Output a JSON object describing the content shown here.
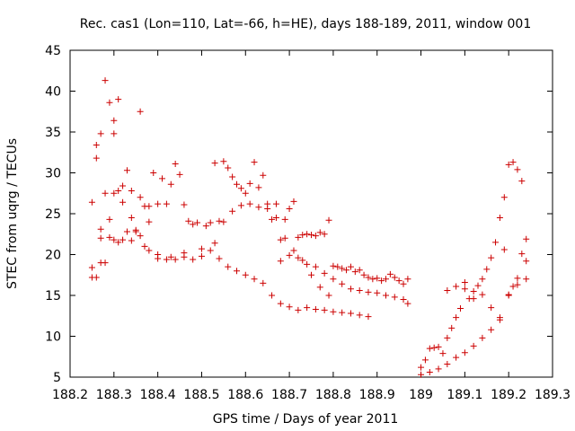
{
  "chart_data": {
    "type": "scatter",
    "title": "Rec. cas1 (Lon=110, Lat=-66, h=HE), days 188-189, 2011, window 001",
    "xlabel": "GPS time / Days of year 2011",
    "ylabel": "STEC from uqrg / TECUs",
    "xlim": [
      188.2,
      189.3
    ],
    "ylim": [
      5,
      45
    ],
    "xticks": [
      188.2,
      188.3,
      188.4,
      188.5,
      188.6,
      188.7,
      188.8,
      188.9,
      189,
      189.1,
      189.2,
      189.3
    ],
    "xtick_labels": [
      "188.2",
      "188.3",
      "188.4",
      "188.5",
      "188.6",
      "188.7",
      "188.8",
      "188.9",
      "189",
      "189.1",
      "189.2",
      "189.3"
    ],
    "yticks": [
      5,
      10,
      15,
      20,
      25,
      30,
      35,
      40,
      45
    ],
    "ytick_labels": [
      "5",
      "10",
      "15",
      "20",
      "25",
      "30",
      "35",
      "40",
      "45"
    ],
    "grid": false,
    "marker": "+",
    "color": "#cc0000",
    "series": [
      {
        "name": "STEC",
        "x": [
          188.25,
          188.25,
          188.25,
          188.26,
          188.26,
          188.26,
          188.27,
          188.27,
          188.27,
          188.28,
          188.28,
          188.28,
          188.29,
          188.29,
          188.3,
          188.3,
          188.3,
          188.31,
          188.31,
          188.32,
          188.32,
          188.33,
          188.34,
          188.34,
          188.35,
          188.36,
          188.36,
          188.37,
          188.38,
          188.38,
          188.39,
          188.4,
          188.41,
          188.42,
          188.43,
          188.44,
          188.45,
          188.46,
          188.47,
          188.48,
          188.49,
          188.5,
          188.51,
          188.52,
          188.53,
          188.54,
          188.55,
          188.56,
          188.57,
          188.58,
          188.59,
          188.6,
          188.61,
          188.62,
          188.63,
          188.64,
          188.65,
          188.66,
          188.67,
          188.68,
          188.69,
          188.7,
          188.71,
          188.72,
          188.73,
          188.74,
          188.75,
          188.76,
          188.77,
          188.78,
          188.79,
          188.8,
          188.81,
          188.82,
          188.83,
          188.84,
          188.85,
          188.86,
          188.87,
          188.88,
          188.89,
          188.9,
          188.91,
          188.92,
          188.93,
          188.94,
          188.95,
          188.96,
          188.97,
          188.68,
          188.7,
          188.72,
          188.74,
          188.76,
          188.78,
          188.8,
          188.82,
          188.84,
          188.86,
          188.88,
          188.9,
          188.92,
          188.94,
          188.96,
          188.97,
          188.3,
          188.32,
          188.34,
          188.36,
          188.38,
          188.4,
          188.42,
          188.44,
          188.46,
          188.48,
          188.5,
          188.52,
          188.54,
          188.56,
          188.58,
          188.6,
          188.62,
          188.64,
          188.66,
          188.68,
          188.7,
          188.72,
          188.74,
          188.76,
          188.78,
          188.8,
          188.82,
          188.84,
          188.86,
          188.88,
          188.27,
          188.29,
          188.31,
          188.33,
          188.35,
          188.37,
          188.4,
          188.43,
          188.46,
          188.53,
          188.55,
          188.57,
          188.59,
          188.61,
          188.63,
          188.65,
          188.67,
          188.69,
          188.71,
          188.73,
          188.75,
          188.77,
          188.79,
          189.0,
          189.01,
          189.02,
          189.03,
          189.04,
          189.05,
          189.06,
          189.07,
          189.08,
          189.09,
          189.1,
          189.11,
          189.12,
          189.13,
          189.14,
          189.15,
          189.16,
          189.17,
          189.18,
          189.19,
          189.2,
          189.21,
          189.22,
          189.23,
          189.24,
          189.0,
          189.02,
          189.04,
          189.06,
          189.08,
          189.1,
          189.12,
          189.14,
          189.16,
          189.18,
          189.2,
          189.22,
          189.24,
          189.06,
          189.08,
          189.1,
          189.12,
          189.14,
          189.16,
          189.18,
          189.19,
          189.2,
          189.21,
          189.22,
          189.23,
          189.24
        ],
        "y": [
          17.2,
          18.4,
          26.4,
          17.2,
          31.8,
          33.4,
          23.1,
          19.0,
          34.8,
          41.3,
          27.5,
          19.0,
          38.6,
          24.3,
          36.4,
          34.8,
          27.5,
          39.0,
          27.8,
          28.4,
          26.4,
          30.3,
          27.8,
          24.5,
          22.8,
          37.5,
          27.0,
          25.9,
          24.0,
          25.9,
          30.0,
          26.2,
          29.3,
          26.2,
          28.6,
          31.1,
          29.8,
          26.1,
          24.1,
          23.7,
          23.9,
          20.7,
          23.5,
          23.9,
          31.2,
          24.1,
          31.4,
          30.6,
          29.5,
          28.6,
          28.1,
          27.5,
          28.7,
          31.3,
          28.2,
          29.7,
          26.2,
          24.3,
          26.2,
          21.8,
          24.3,
          25.6,
          26.5,
          22.1,
          22.4,
          22.5,
          22.4,
          22.3,
          22.7,
          22.5,
          24.2,
          18.6,
          18.5,
          18.3,
          18.1,
          18.5,
          17.9,
          18.1,
          17.5,
          17.2,
          17.0,
          17.1,
          16.8,
          17.0,
          17.6,
          17.2,
          16.8,
          16.4,
          17.0,
          19.2,
          19.9,
          19.6,
          18.8,
          18.5,
          17.7,
          17.0,
          16.4,
          15.8,
          15.6,
          15.4,
          15.3,
          15.0,
          14.8,
          14.5,
          14.0,
          21.8,
          21.8,
          21.7,
          22.3,
          20.5,
          20.0,
          19.4,
          19.4,
          19.7,
          19.4,
          19.8,
          20.5,
          19.5,
          18.5,
          18.0,
          17.5,
          17.0,
          16.5,
          15.0,
          14.0,
          13.6,
          13.2,
          13.5,
          13.3,
          13.2,
          13.0,
          12.9,
          12.8,
          12.6,
          12.4,
          22.0,
          22.1,
          21.5,
          22.8,
          23.0,
          21.0,
          19.5,
          19.7,
          20.2,
          21.4,
          24.0,
          25.3,
          26.0,
          26.2,
          25.8,
          25.6,
          24.5,
          22.0,
          20.5,
          19.3,
          17.5,
          16.0,
          15.0,
          6.2,
          7.1,
          8.5,
          8.6,
          8.7,
          7.9,
          9.8,
          11.0,
          12.3,
          13.4,
          15.8,
          14.6,
          15.5,
          16.2,
          17.0,
          18.2,
          19.6,
          21.5,
          24.5,
          27.0,
          31.0,
          31.3,
          30.4,
          29.0,
          21.9,
          5.3,
          5.6,
          6.0,
          6.6,
          7.4,
          8.0,
          8.8,
          9.8,
          10.8,
          12.3,
          15.0,
          16.3,
          17.0,
          15.6,
          16.1,
          16.6,
          14.6,
          15.1,
          13.5,
          12.0,
          20.6,
          15.1,
          16.1,
          17.1,
          20.1,
          19.2
        ]
      }
    ]
  }
}
